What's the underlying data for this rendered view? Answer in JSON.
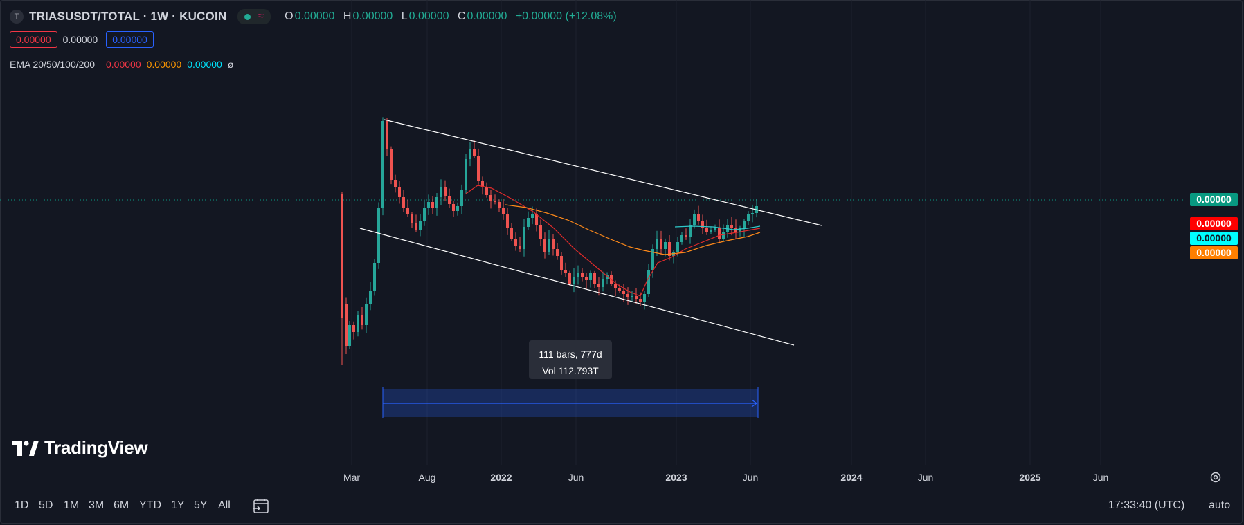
{
  "header": {
    "symbol_icon": "T",
    "symbol": "TRIASUSDT/TOTAL · 1W · KUCOIN",
    "ohlc": [
      {
        "key": "O",
        "value": "0.00000"
      },
      {
        "key": "H",
        "value": "0.00000"
      },
      {
        "key": "L",
        "value": "0.00000"
      },
      {
        "key": "C",
        "value": "0.00000"
      }
    ],
    "change": "+0.00000 (+12.08%)",
    "boxes": [
      "0.00000",
      "0.00000",
      "0.00000"
    ]
  },
  "ema": {
    "label": "EMA 20/50/100/200",
    "values": [
      "0.00000",
      "0.00000",
      "0.00000"
    ],
    "trailing": "ø"
  },
  "price_tags": [
    {
      "value": "0.00000",
      "bg": "#089981",
      "fg": "#ffffff"
    },
    {
      "value": "0.00000",
      "bg": "#ff0000",
      "fg": "#ffffff"
    },
    {
      "value": "0.00000",
      "bg": "#00ffff",
      "fg": "#131722"
    },
    {
      "value": "0.00000",
      "bg": "#ff7f00",
      "fg": "#ffffff"
    }
  ],
  "tooltip": {
    "bars": "111 bars, 777d",
    "vol": "Vol 112.793T"
  },
  "x_axis": [
    {
      "label": "Mar",
      "bold": false
    },
    {
      "label": "Aug",
      "bold": false
    },
    {
      "label": "2022",
      "bold": true
    },
    {
      "label": "Jun",
      "bold": false
    },
    {
      "label": "2023",
      "bold": true
    },
    {
      "label": "Jun",
      "bold": false
    },
    {
      "label": "2024",
      "bold": true
    },
    {
      "label": "Jun",
      "bold": false
    },
    {
      "label": "2025",
      "bold": true
    },
    {
      "label": "Jun",
      "bold": false
    }
  ],
  "logo_text": "TradingView",
  "range_buttons": [
    "1D",
    "5D",
    "1M",
    "3M",
    "6M",
    "YTD",
    "1Y",
    "5Y",
    "All"
  ],
  "clock": "17:33:40 (UTC)",
  "scale_mode": "auto",
  "icons": [
    "calendar-goto-icon",
    "settings-gear-icon",
    "tradingview-logo-icon"
  ],
  "colors": {
    "up": "#26a69a",
    "down": "#ef5350",
    "ema20": "#e12b2b",
    "ema50": "#ff8a1a",
    "ema100": "#2ec8c8",
    "range": "#2962ff"
  },
  "chart_data": {
    "type": "candlestick",
    "interval": "1W",
    "x_range": [
      "2021-02",
      "2025-08"
    ],
    "y_scale": "price",
    "grid": true,
    "trendlines": 3,
    "series": [
      {
        "name": "EMA 20",
        "color": "#e12b2b"
      },
      {
        "name": "EMA 50",
        "color": "#ff8a1a"
      },
      {
        "name": "EMA 100",
        "color": "#2ec8c8"
      }
    ],
    "date_range_measure": {
      "bars": 111,
      "days": 777,
      "volume": "112.793T"
    }
  }
}
